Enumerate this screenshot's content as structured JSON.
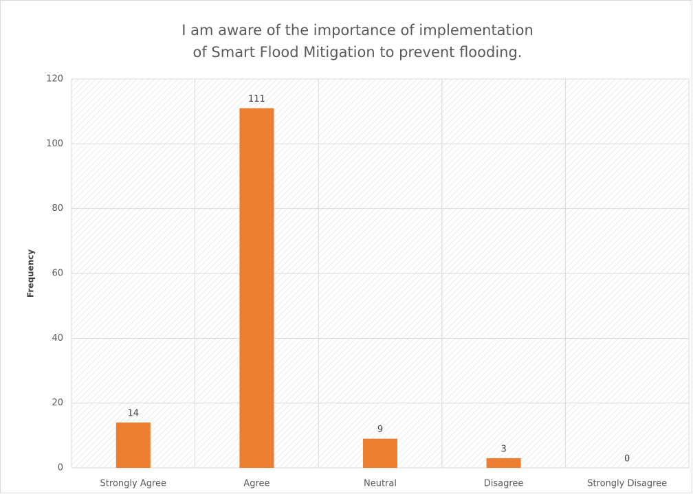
{
  "chart_data": {
    "type": "bar",
    "title": "I am aware of the importance of implementation of Smart Flood Mitigation to prevent flooding.",
    "y_label": "Frequency",
    "categories": [
      "Strongly Agree",
      "Agree",
      "Neutral",
      "Disagree",
      "Strongly Disagree"
    ],
    "values": [
      14,
      111,
      9,
      3,
      0
    ],
    "color": "#ed7d31",
    "ylim": [
      0,
      120
    ],
    "yticks": [
      0,
      20,
      40,
      60,
      80,
      100,
      120
    ],
    "grid": true
  }
}
